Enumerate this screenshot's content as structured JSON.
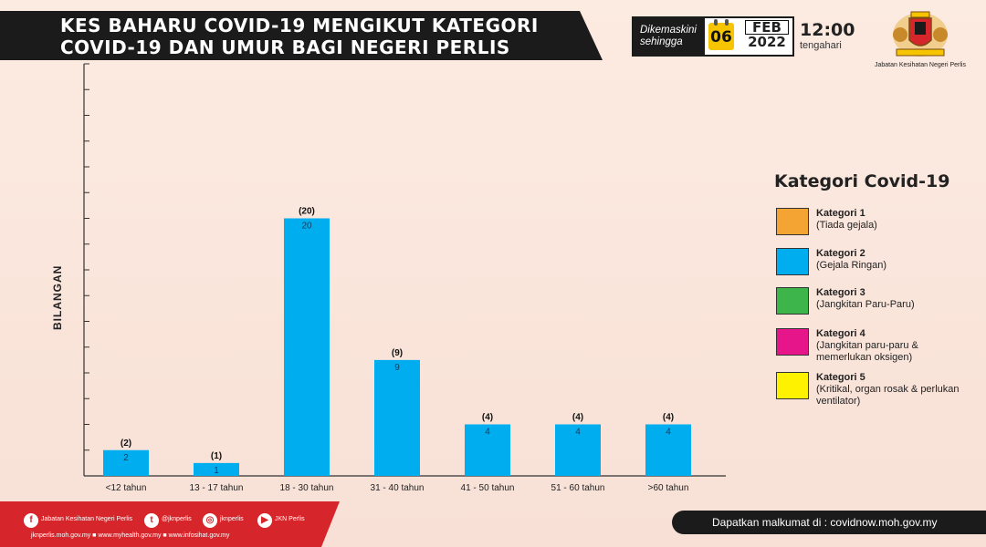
{
  "header": {
    "title_line1": "KES BAHARU COVID-19 MENGIKUT KATEGORI",
    "title_line2": "COVID-19 DAN UMUR BAGI NEGERI PERLIS",
    "updated_line1": "Dikemaskini",
    "updated_line2": "sehingga",
    "day": "06",
    "month": "FEB",
    "year": "2022",
    "time": "12:00",
    "time_note": "tengahari",
    "agency": "Jabatan Kesihatan Negeri Perlis"
  },
  "chart_data": {
    "type": "bar",
    "ylabel": "BILANGAN",
    "xlabel": "",
    "categories": [
      "<12 tahun",
      "13 - 17 tahun",
      "18 - 30 tahun",
      "31 - 40 tahun",
      "41 - 50 tahun",
      "51 - 60 tahun",
      ">60 tahun"
    ],
    "series": [
      {
        "name": "Kategori 1",
        "values": [
          0,
          0,
          0,
          0,
          0,
          0,
          0
        ]
      },
      {
        "name": "Kategori 2",
        "values": [
          2,
          1,
          20,
          9,
          4,
          4,
          4
        ]
      },
      {
        "name": "Kategori 3",
        "values": [
          0,
          0,
          0,
          0,
          0,
          0,
          0
        ]
      },
      {
        "name": "Kategori 4",
        "values": [
          0,
          0,
          0,
          0,
          0,
          0,
          0
        ]
      },
      {
        "name": "Kategori 5",
        "values": [
          0,
          0,
          0,
          0,
          0,
          0,
          0
        ]
      }
    ],
    "totals": [
      "(2)",
      "(1)",
      "(20)",
      "(9)",
      "(4)",
      "(4)",
      "(4)"
    ],
    "bar_labels": [
      "2",
      "1",
      "20",
      "9",
      "4",
      "4",
      "4"
    ],
    "ylim": [
      0,
      32
    ],
    "legend_placement": "right",
    "grid": false
  },
  "legend": {
    "title": "Kategori Covid-19",
    "items": [
      {
        "name": "Kategori 1",
        "desc": "(Tiada gejala)",
        "color": "#f4a432"
      },
      {
        "name": "Kategori 2",
        "desc": "(Gejala Ringan)",
        "color": "#00aeef"
      },
      {
        "name": "Kategori 3",
        "desc": "(Jangkitan Paru-Paru)",
        "color": "#3db54a"
      },
      {
        "name": "Kategori 4",
        "desc": "(Jangkitan paru-paru & memerlukan oksigen)",
        "color": "#e6168a"
      },
      {
        "name": "Kategori 5",
        "desc": "(Kritikal, organ rosak & perlukan ventilator)",
        "color": "#fff200"
      }
    ]
  },
  "footer": {
    "social": [
      {
        "icon": "facebook-icon",
        "label": "Jabatan Kesihatan Negeri Perlis"
      },
      {
        "icon": "twitter-icon",
        "label": "@jknperlis"
      },
      {
        "icon": "instagram-icon",
        "label": "jknperlis"
      },
      {
        "icon": "youtube-icon",
        "label": "JKN Perlis"
      }
    ],
    "sites": "jknperlis.moh.gov.my ■ www.myhealth.gov.my ■ www.infosihat.gov.my",
    "info": "Dapatkan malkumat di : covidnow.moh.gov.my"
  },
  "colors": {
    "bar": "#00aeef",
    "banner": "#1b1b1b",
    "footer_red": "#d7262b",
    "badge": "#f6c400"
  }
}
